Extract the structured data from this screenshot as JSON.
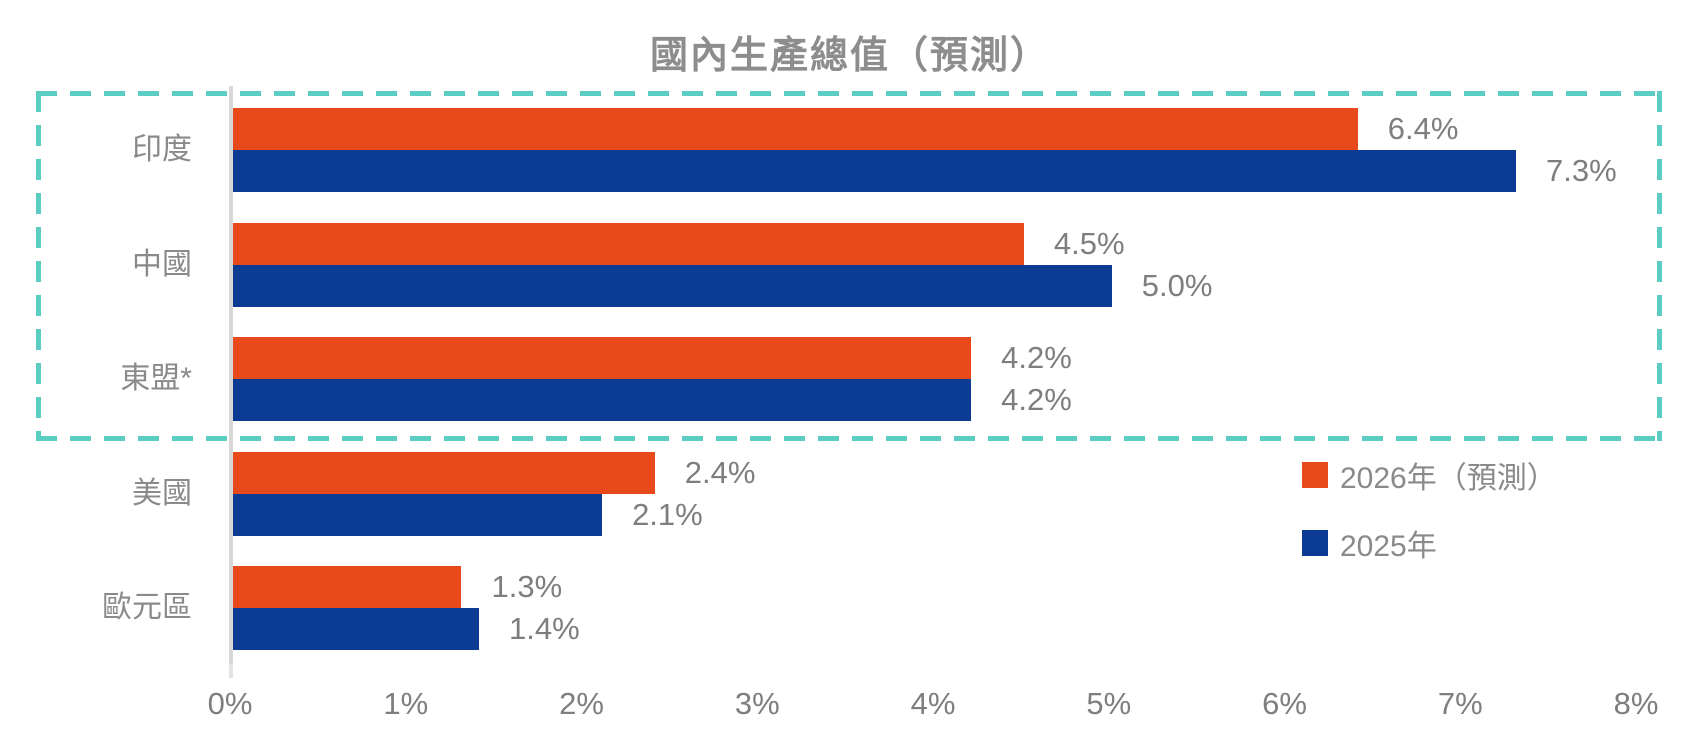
{
  "chart_data": {
    "type": "bar",
    "orientation": "horizontal",
    "title": "國內生產總值（預測）",
    "categories": [
      "印度",
      "中國",
      "東盟*",
      "美國",
      "歐元區"
    ],
    "series": [
      {
        "name": "2026年（預測）",
        "color": "#e8491b",
        "values": [
          6.4,
          4.5,
          4.2,
          2.4,
          1.3
        ],
        "labels": [
          "6.4%",
          "4.5%",
          "4.2%",
          "2.4%",
          "1.3%"
        ]
      },
      {
        "name": "2025年",
        "color": "#0c3b93",
        "values": [
          7.3,
          5.0,
          4.2,
          2.1,
          1.4
        ],
        "labels": [
          "7.3%",
          "5.0%",
          "4.2%",
          "2.1%",
          "1.4%"
        ]
      }
    ],
    "xlabel": "",
    "ylabel": "",
    "x_axis": {
      "min": 0,
      "max": 8,
      "tick_step": 1,
      "tick_labels": [
        "0%",
        "1%",
        "2%",
        "3%",
        "4%",
        "5%",
        "6%",
        "7%",
        "8%"
      ]
    },
    "grid": false,
    "legend": {
      "position": "right-lower",
      "entries": [
        "2026年（預測）",
        "2025年"
      ]
    },
    "annotations": {
      "highlight_box": {
        "style": "dashed",
        "color": "#5ccdc2",
        "categories_covered": [
          "印度",
          "中國",
          "東盟*"
        ]
      }
    },
    "colors": {
      "title_text": "#8d8d8d",
      "label_text": "#7e7e7e",
      "axis_line": "#d8d8d8",
      "highlight": "#5ccdc2"
    }
  }
}
